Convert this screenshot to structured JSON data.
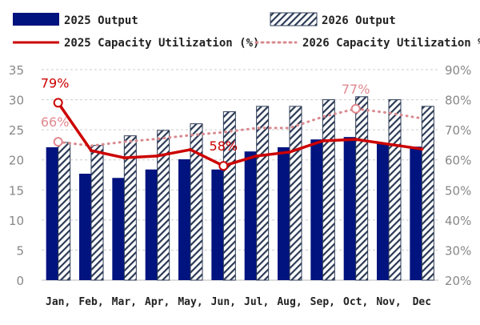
{
  "chart_data": {
    "type": "bar+line",
    "categories": [
      "Jan,",
      "Feb,",
      "Mar,",
      "Apr,",
      "May,",
      "Jun,",
      "Jul,",
      "Aug,",
      "Sep,",
      "Oct,",
      "Nov,",
      "Dec"
    ],
    "series": [
      {
        "name": "2025 Output",
        "type": "bar",
        "axis": "left",
        "color": "#00137f",
        "values": [
          22.1,
          17.7,
          17.0,
          18.4,
          20.1,
          18.4,
          21.4,
          22.1,
          23.4,
          23.8,
          22.8,
          22.2
        ]
      },
      {
        "name": "2026 Output",
        "type": "bar",
        "axis": "left",
        "pattern": "hatched",
        "color": "#2b3a55",
        "values": [
          22.9,
          22.4,
          24.0,
          24.9,
          26.0,
          28.0,
          28.9,
          28.9,
          30.0,
          30.5,
          30.0,
          28.9
        ]
      },
      {
        "name": "2025 Capacity Utilization (%)",
        "type": "line",
        "axis": "right",
        "color": "#cc0000",
        "values": [
          79,
          63.1,
          60.7,
          61.3,
          63.4,
          58,
          61.3,
          62.6,
          66.3,
          66.8,
          65.2,
          63.6
        ]
      },
      {
        "name": "2026 Capacity Utilization %",
        "type": "line",
        "axis": "right",
        "style": "dotted",
        "color": "#d98a8f",
        "values": [
          66,
          64.7,
          66,
          67,
          68.2,
          69.2,
          70.6,
          70.6,
          74.3,
          77,
          75.6,
          73.8
        ]
      }
    ],
    "annotations": [
      {
        "series": 2,
        "index": 0,
        "text": "79%"
      },
      {
        "series": 2,
        "index": 5,
        "text": "58%"
      },
      {
        "series": 3,
        "index": 0,
        "text": "66%"
      },
      {
        "series": 3,
        "index": 9,
        "text": "77%"
      }
    ],
    "ylim": [
      0,
      35
    ],
    "yticks": [
      "0",
      "5",
      "10",
      "15",
      "20",
      "25",
      "30",
      "35"
    ],
    "y2lim": [
      20,
      90
    ],
    "y2ticks": [
      "20%",
      "30%",
      "40%",
      "50%",
      "60%",
      "70%",
      "80%",
      "90%"
    ],
    "grid": true,
    "legend": "top"
  }
}
